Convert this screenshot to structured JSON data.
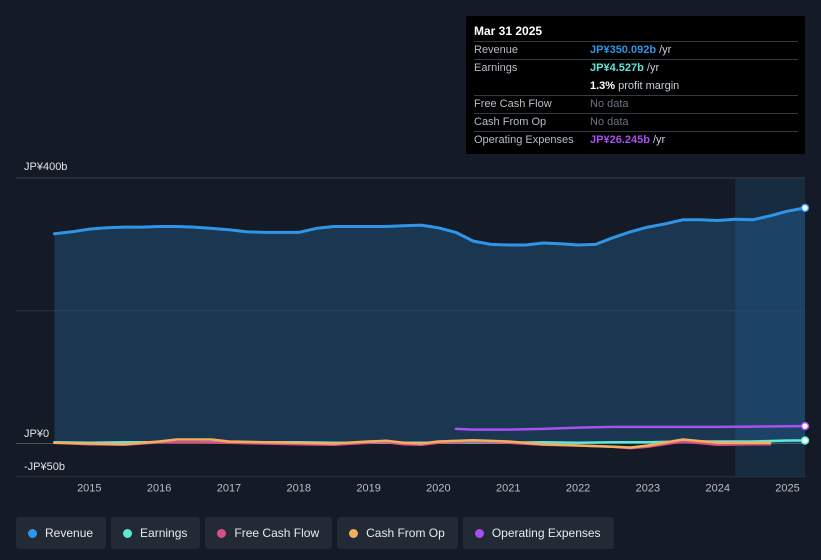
{
  "tooltip": {
    "date": "Mar 31 2025",
    "rows": [
      {
        "label": "Revenue",
        "value": "JP¥350.092b",
        "unit": "/yr",
        "color": "#2e95e8"
      },
      {
        "label": "Earnings",
        "value": "JP¥4.527b",
        "unit": "/yr",
        "color": "#5ee8d6"
      },
      {
        "label": "",
        "value": "1.3%",
        "unit": "profit margin",
        "color": "#ffffff"
      },
      {
        "label": "Free Cash Flow",
        "value": "No data",
        "unit": "",
        "color": "#6b7380"
      },
      {
        "label": "Cash From Op",
        "value": "No data",
        "unit": "",
        "color": "#6b7380"
      },
      {
        "label": "Operating Expenses",
        "value": "JP¥26.245b",
        "unit": "/yr",
        "color": "#a84ff0"
      }
    ]
  },
  "legend": [
    {
      "label": "Revenue",
      "color": "#2e95e8"
    },
    {
      "label": "Earnings",
      "color": "#5ee8d6"
    },
    {
      "label": "Free Cash Flow",
      "color": "#d94f85"
    },
    {
      "label": "Cash From Op",
      "color": "#f0b060"
    },
    {
      "label": "Operating Expenses",
      "color": "#a84ff0"
    }
  ],
  "chart_data": {
    "type": "area",
    "ytick_labels": [
      "JP¥400b",
      "JP¥0",
      "-JP¥50b"
    ],
    "ylim": [
      -50,
      400
    ],
    "grid_y_values": [
      400,
      200,
      0
    ],
    "x_tick_labels": [
      "2015",
      "2016",
      "2017",
      "2018",
      "2019",
      "2020",
      "2021",
      "2022",
      "2023",
      "2024",
      "2025"
    ],
    "x_tick_years": [
      2015,
      2016,
      2017,
      2018,
      2019,
      2020,
      2021,
      2022,
      2023,
      2024,
      2025
    ],
    "xlim": [
      2013.95,
      2025.25
    ],
    "forecast_shade_start": 2024.25,
    "series": [
      {
        "name": "Revenue",
        "color": "#2e95e8",
        "area": true,
        "end_marker": true,
        "x": [
          2014.5,
          2014.75,
          2015.0,
          2015.25,
          2015.5,
          2015.75,
          2016.0,
          2016.25,
          2016.5,
          2016.75,
          2017.0,
          2017.25,
          2017.5,
          2017.75,
          2018.0,
          2018.25,
          2018.5,
          2018.75,
          2019.0,
          2019.25,
          2019.5,
          2019.75,
          2020.0,
          2020.25,
          2020.5,
          2020.75,
          2021.0,
          2021.25,
          2021.5,
          2021.75,
          2022.0,
          2022.25,
          2022.5,
          2022.75,
          2023.0,
          2023.25,
          2023.5,
          2023.75,
          2024.0,
          2024.25,
          2024.5,
          2024.75,
          2025.0,
          2025.25
        ],
        "y": [
          316,
          319,
          323,
          325,
          326,
          326,
          327,
          327,
          326,
          324,
          322,
          319,
          318,
          318,
          318,
          324,
          327,
          327,
          327,
          327,
          328,
          329,
          325,
          318,
          305,
          300,
          299,
          299,
          302,
          301,
          299,
          300,
          310,
          319,
          326,
          331,
          337,
          337,
          336,
          338,
          337,
          343,
          350,
          355
        ]
      },
      {
        "name": "Earnings",
        "color": "#5ee8d6",
        "area": false,
        "end_marker": true,
        "x": [
          2014.5,
          2015.0,
          2015.5,
          2016.0,
          2016.5,
          2017.0,
          2017.5,
          2018.0,
          2018.5,
          2019.0,
          2019.5,
          2020.0,
          2020.5,
          2021.0,
          2021.5,
          2022.0,
          2022.5,
          2023.0,
          2023.5,
          2024.0,
          2024.5,
          2025.0,
          2025.25
        ],
        "y": [
          2,
          1,
          2,
          2,
          2,
          2,
          2,
          2,
          1,
          1,
          1,
          1,
          2,
          1,
          2,
          1,
          2,
          2,
          3,
          3,
          3,
          4.5,
          4.5
        ]
      },
      {
        "name": "Free Cash Flow",
        "color": "#d94f85",
        "area": false,
        "end_marker": false,
        "x": [
          2014.5,
          2015.0,
          2015.5,
          2016.0,
          2016.5,
          2017.0,
          2017.5,
          2018.0,
          2018.5,
          2019.0,
          2019.25,
          2019.5,
          2019.75,
          2020.0,
          2020.5,
          2021.0,
          2021.5,
          2022.0,
          2022.5,
          2022.75,
          2023.0,
          2023.5,
          2024.0,
          2024.5,
          2024.75
        ],
        "y": [
          1,
          -1,
          -2,
          2,
          2,
          1,
          0,
          -1,
          -2,
          1,
          2,
          -1,
          -2,
          1,
          3,
          1,
          -2,
          -3,
          -5,
          -7,
          -5,
          3,
          -2,
          -1,
          -1
        ]
      },
      {
        "name": "Cash From Op",
        "color": "#f0b060",
        "area": false,
        "end_marker": false,
        "x": [
          2014.5,
          2015.0,
          2015.5,
          2016.0,
          2016.25,
          2016.5,
          2016.75,
          2017.0,
          2017.5,
          2018.0,
          2018.5,
          2019.0,
          2019.25,
          2019.5,
          2019.75,
          2020.0,
          2020.5,
          2021.0,
          2021.5,
          2022.0,
          2022.5,
          2022.75,
          2023.0,
          2023.5,
          2024.0,
          2024.5,
          2024.75
        ],
        "y": [
          1,
          0,
          -1,
          3,
          6,
          6,
          6,
          3,
          2,
          1,
          0,
          3,
          4,
          1,
          0,
          3,
          5,
          3,
          -1,
          -3,
          -5,
          -6,
          -3,
          6,
          1,
          1,
          1
        ]
      },
      {
        "name": "Operating Expenses",
        "color": "#a84ff0",
        "area": false,
        "end_marker": true,
        "x": [
          2020.25,
          2020.5,
          2021.0,
          2021.5,
          2022.0,
          2022.5,
          2023.0,
          2023.5,
          2024.0,
          2024.5,
          2025.0,
          2025.25
        ],
        "y": [
          22,
          21,
          21,
          22,
          24,
          25,
          25,
          25,
          25,
          25.5,
          26,
          26.2
        ]
      }
    ]
  }
}
